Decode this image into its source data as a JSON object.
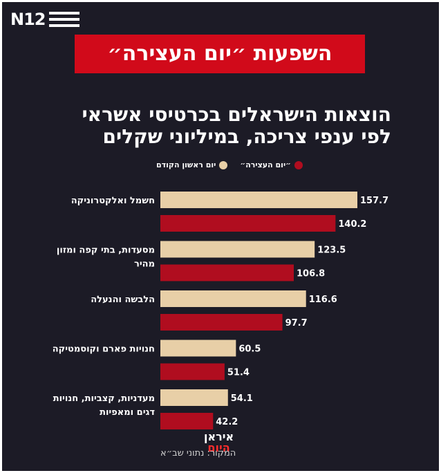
{
  "brand": {
    "logo_text": "N12"
  },
  "banner": {
    "title": "השפעות ״יום העצירה״"
  },
  "colors": {
    "background": "#1c1b26",
    "previous_series": "#e8cfa7",
    "strike_series": "#b00d1f",
    "banner": "#d10a1a"
  },
  "chart_data": {
    "type": "bar",
    "orientation": "horizontal",
    "title_line1": "הוצאות הישראלים בכרטיסי אשראי",
    "title_line2": "לפי ענפי צריכה, במיליוני שקלים",
    "categories": [
      [
        "חשמל ואלקטרוניקה"
      ],
      [
        "מסעדות, בתי קפה ומזון",
        "מהיר"
      ],
      [
        "הלבשה והנעלה"
      ],
      [
        "חנויות פארם וקוסמטיקה"
      ],
      [
        "מעדניות, קצביות, חנויות",
        "דגים ומאפיות"
      ]
    ],
    "series": [
      {
        "name": "יום ראשון הקודם",
        "values": [
          157.7,
          123.5,
          116.6,
          60.5,
          54.1
        ]
      },
      {
        "name": "״יום העצירה״",
        "values": [
          140.2,
          106.8,
          97.7,
          51.4,
          42.2
        ]
      }
    ],
    "xlim": [
      0,
      160
    ],
    "legend": "top",
    "grid": false
  },
  "watermark": {
    "top": "איראן",
    "bottom": "היום"
  },
  "source": {
    "text": "המקור: נתוני שב״א"
  }
}
